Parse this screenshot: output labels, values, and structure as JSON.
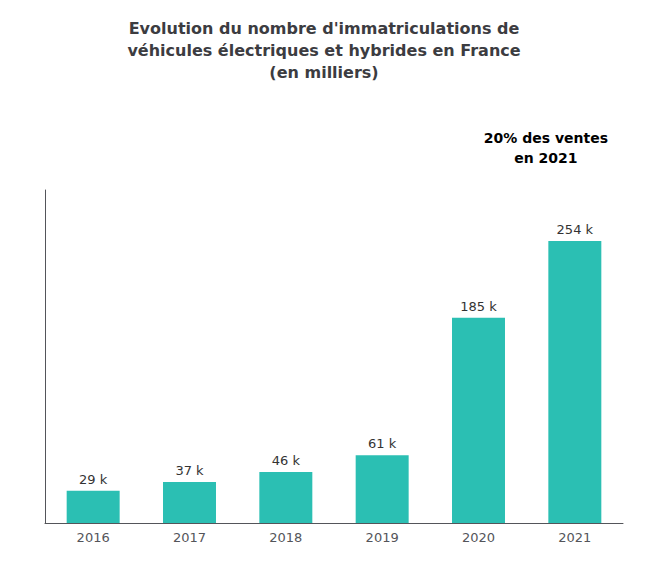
{
  "chart_data": {
    "type": "bar",
    "title": "Evolution du nombre d'immatriculations de\nvéhicules électriques et hybrides en France\n(en milliers)",
    "categories": [
      "2016",
      "2017",
      "2018",
      "2019",
      "2020",
      "2021"
    ],
    "values": [
      29,
      37,
      46,
      61,
      185,
      254
    ],
    "value_labels": [
      "29 k",
      "37 k",
      "46 k",
      "61 k",
      "185 k",
      "254 k"
    ],
    "data_labels": true,
    "color": "#2BBFB3",
    "ylim": [
      0,
      300
    ],
    "grid": false,
    "tick_labels": "x",
    "annotation": "20% des ventes\nen 2021"
  }
}
